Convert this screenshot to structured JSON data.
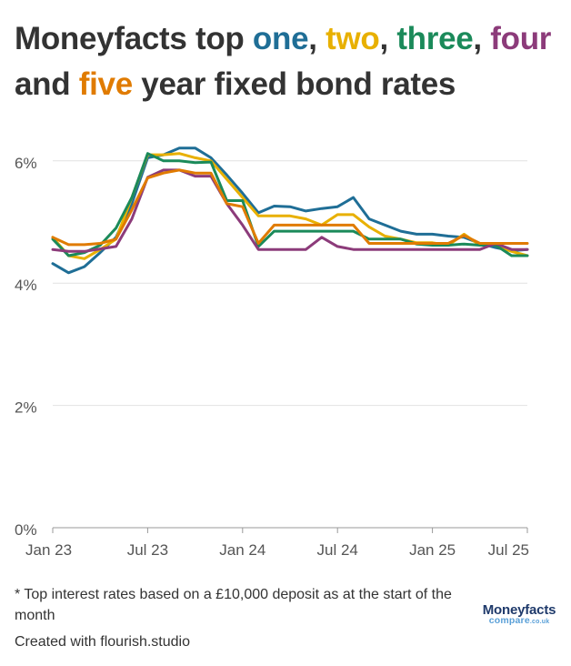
{
  "title": {
    "parts": [
      {
        "text": "Moneyfacts top ",
        "color": "#333333"
      },
      {
        "text": "one",
        "color": "#1f6e96"
      },
      {
        "text": ", ",
        "color": "#333333"
      },
      {
        "text": "two",
        "color": "#e8b000"
      },
      {
        "text": ", ",
        "color": "#333333"
      },
      {
        "text": "three",
        "color": "#1b8a5a"
      },
      {
        "text": ", ",
        "color": "#333333"
      },
      {
        "text": "four",
        "color": "#8c3b7a"
      },
      {
        "text": " and ",
        "color": "#333333"
      },
      {
        "text": "five",
        "color": "#e07b00"
      },
      {
        "text": " year fixed bond rates",
        "color": "#333333"
      }
    ]
  },
  "footnote": "* Top interest rates based on a £10,000 deposit as at the start of the month",
  "credit": "Created with flourish.studio",
  "logo": {
    "main": "Moneyfacts",
    "sub": "compare",
    "suffix": ".co.uk"
  },
  "chart_data": {
    "type": "line",
    "x": [
      "Jan 23",
      "Feb 23",
      "Mar 23",
      "Apr 23",
      "May 23",
      "Jun 23",
      "Jul 23",
      "Aug 23",
      "Sep 23",
      "Oct 23",
      "Nov 23",
      "Dec 23",
      "Jan 24",
      "Feb 24",
      "Mar 24",
      "Apr 24",
      "May 24",
      "Jun 24",
      "Jul 24",
      "Aug 24",
      "Sep 24",
      "Oct 24",
      "Nov 24",
      "Dec 24",
      "Jan 25",
      "Feb 25",
      "Mar 25",
      "Apr 25",
      "May 25",
      "Jun 25",
      "Jul 25"
    ],
    "x_ticks": [
      "Jan 23",
      "Jul 23",
      "Jan 24",
      "Jul 24",
      "Jan 25",
      "Jul 25"
    ],
    "y_ticks": [
      0,
      2,
      4,
      6
    ],
    "y_tick_labels": [
      "0%",
      "2%",
      "4%",
      "6%"
    ],
    "ylim": [
      0,
      6.25
    ],
    "grid": true,
    "series": [
      {
        "name": "one",
        "color": "#1f6e96",
        "values": [
          4.32,
          4.17,
          4.27,
          4.5,
          4.75,
          5.3,
          6.05,
          6.1,
          6.21,
          6.21,
          6.05,
          5.77,
          5.47,
          5.15,
          5.26,
          5.25,
          5.18,
          5.22,
          5.25,
          5.4,
          5.05,
          4.95,
          4.85,
          4.8,
          4.8,
          4.77,
          4.75,
          4.65,
          4.58,
          4.53,
          4.55
        ]
      },
      {
        "name": "two",
        "color": "#e8b000",
        "values": [
          4.75,
          4.45,
          4.4,
          4.55,
          4.72,
          5.4,
          6.1,
          6.1,
          6.12,
          6.05,
          6.0,
          5.7,
          5.4,
          5.1,
          5.1,
          5.1,
          5.05,
          4.95,
          5.12,
          5.12,
          4.92,
          4.77,
          4.72,
          4.66,
          4.66,
          4.62,
          4.8,
          4.62,
          4.62,
          4.52,
          4.45
        ]
      },
      {
        "name": "three",
        "color": "#1b8a5a",
        "values": [
          4.72,
          4.45,
          4.5,
          4.62,
          4.9,
          5.4,
          6.12,
          6.0,
          6.0,
          5.97,
          5.98,
          5.35,
          5.35,
          4.6,
          4.85,
          4.85,
          4.85,
          4.85,
          4.85,
          4.85,
          4.72,
          4.72,
          4.72,
          4.64,
          4.62,
          4.62,
          4.64,
          4.62,
          4.62,
          4.45,
          4.45
        ]
      },
      {
        "name": "four",
        "color": "#8c3b7a",
        "values": [
          4.55,
          4.52,
          4.52,
          4.56,
          4.6,
          5.05,
          5.73,
          5.85,
          5.85,
          5.75,
          5.75,
          5.3,
          4.95,
          4.55,
          4.55,
          4.55,
          4.55,
          4.75,
          4.6,
          4.55,
          4.55,
          4.55,
          4.55,
          4.55,
          4.55,
          4.55,
          4.55,
          4.55,
          4.65,
          4.55,
          4.55
        ]
      },
      {
        "name": "five",
        "color": "#e07b00",
        "values": [
          4.75,
          4.63,
          4.63,
          4.65,
          4.72,
          5.2,
          5.72,
          5.8,
          5.85,
          5.8,
          5.8,
          5.3,
          5.25,
          4.65,
          4.95,
          4.95,
          4.95,
          4.95,
          4.95,
          4.95,
          4.65,
          4.65,
          4.65,
          4.65,
          4.65,
          4.65,
          4.78,
          4.65,
          4.65,
          4.65,
          4.65
        ]
      }
    ]
  }
}
